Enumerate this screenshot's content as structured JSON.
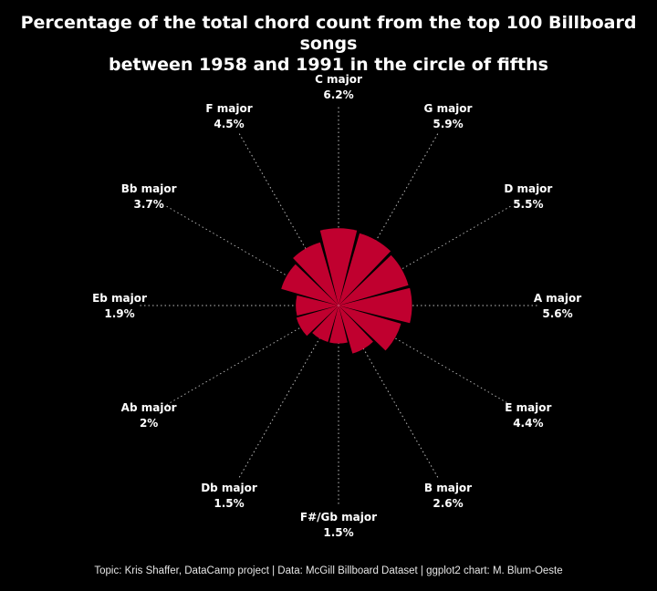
{
  "title_line1": "Percentage of the total chord count from the top 100 Billboard songs",
  "title_line2": "between 1958 and 1991 in the circle of fifths",
  "caption": "Topic: Kris Shaffer, DataCamp project | Data: McGill Billboard Dataset | ggplot2 chart: M. Blum-Oeste",
  "chart_data": {
    "type": "bar",
    "polar": true,
    "categories": [
      "C major",
      "G major",
      "D major",
      "A major",
      "E major",
      "B major",
      "F#/Gb major",
      "Db major",
      "Ab major",
      "Eb major",
      "Bb major",
      "F major"
    ],
    "values": [
      6.2,
      5.9,
      5.5,
      5.6,
      4.4,
      2.6,
      1.5,
      1.5,
      2.0,
      1.9,
      3.7,
      4.5
    ],
    "value_labels": [
      "6.2%",
      "5.9%",
      "5.5%",
      "5.6%",
      "4.4%",
      "2.6%",
      "1.5%",
      "1.5%",
      "2%",
      "1.9%",
      "3.7%",
      "4.5%"
    ],
    "title": "Percentage of the total chord count from the top 100 Billboard songs between 1958 and 1991 in the circle of fifths",
    "colors": {
      "bar": "#c0002f",
      "background": "#000000",
      "guide": "#bbbbbb",
      "text": "#ffffff"
    }
  }
}
